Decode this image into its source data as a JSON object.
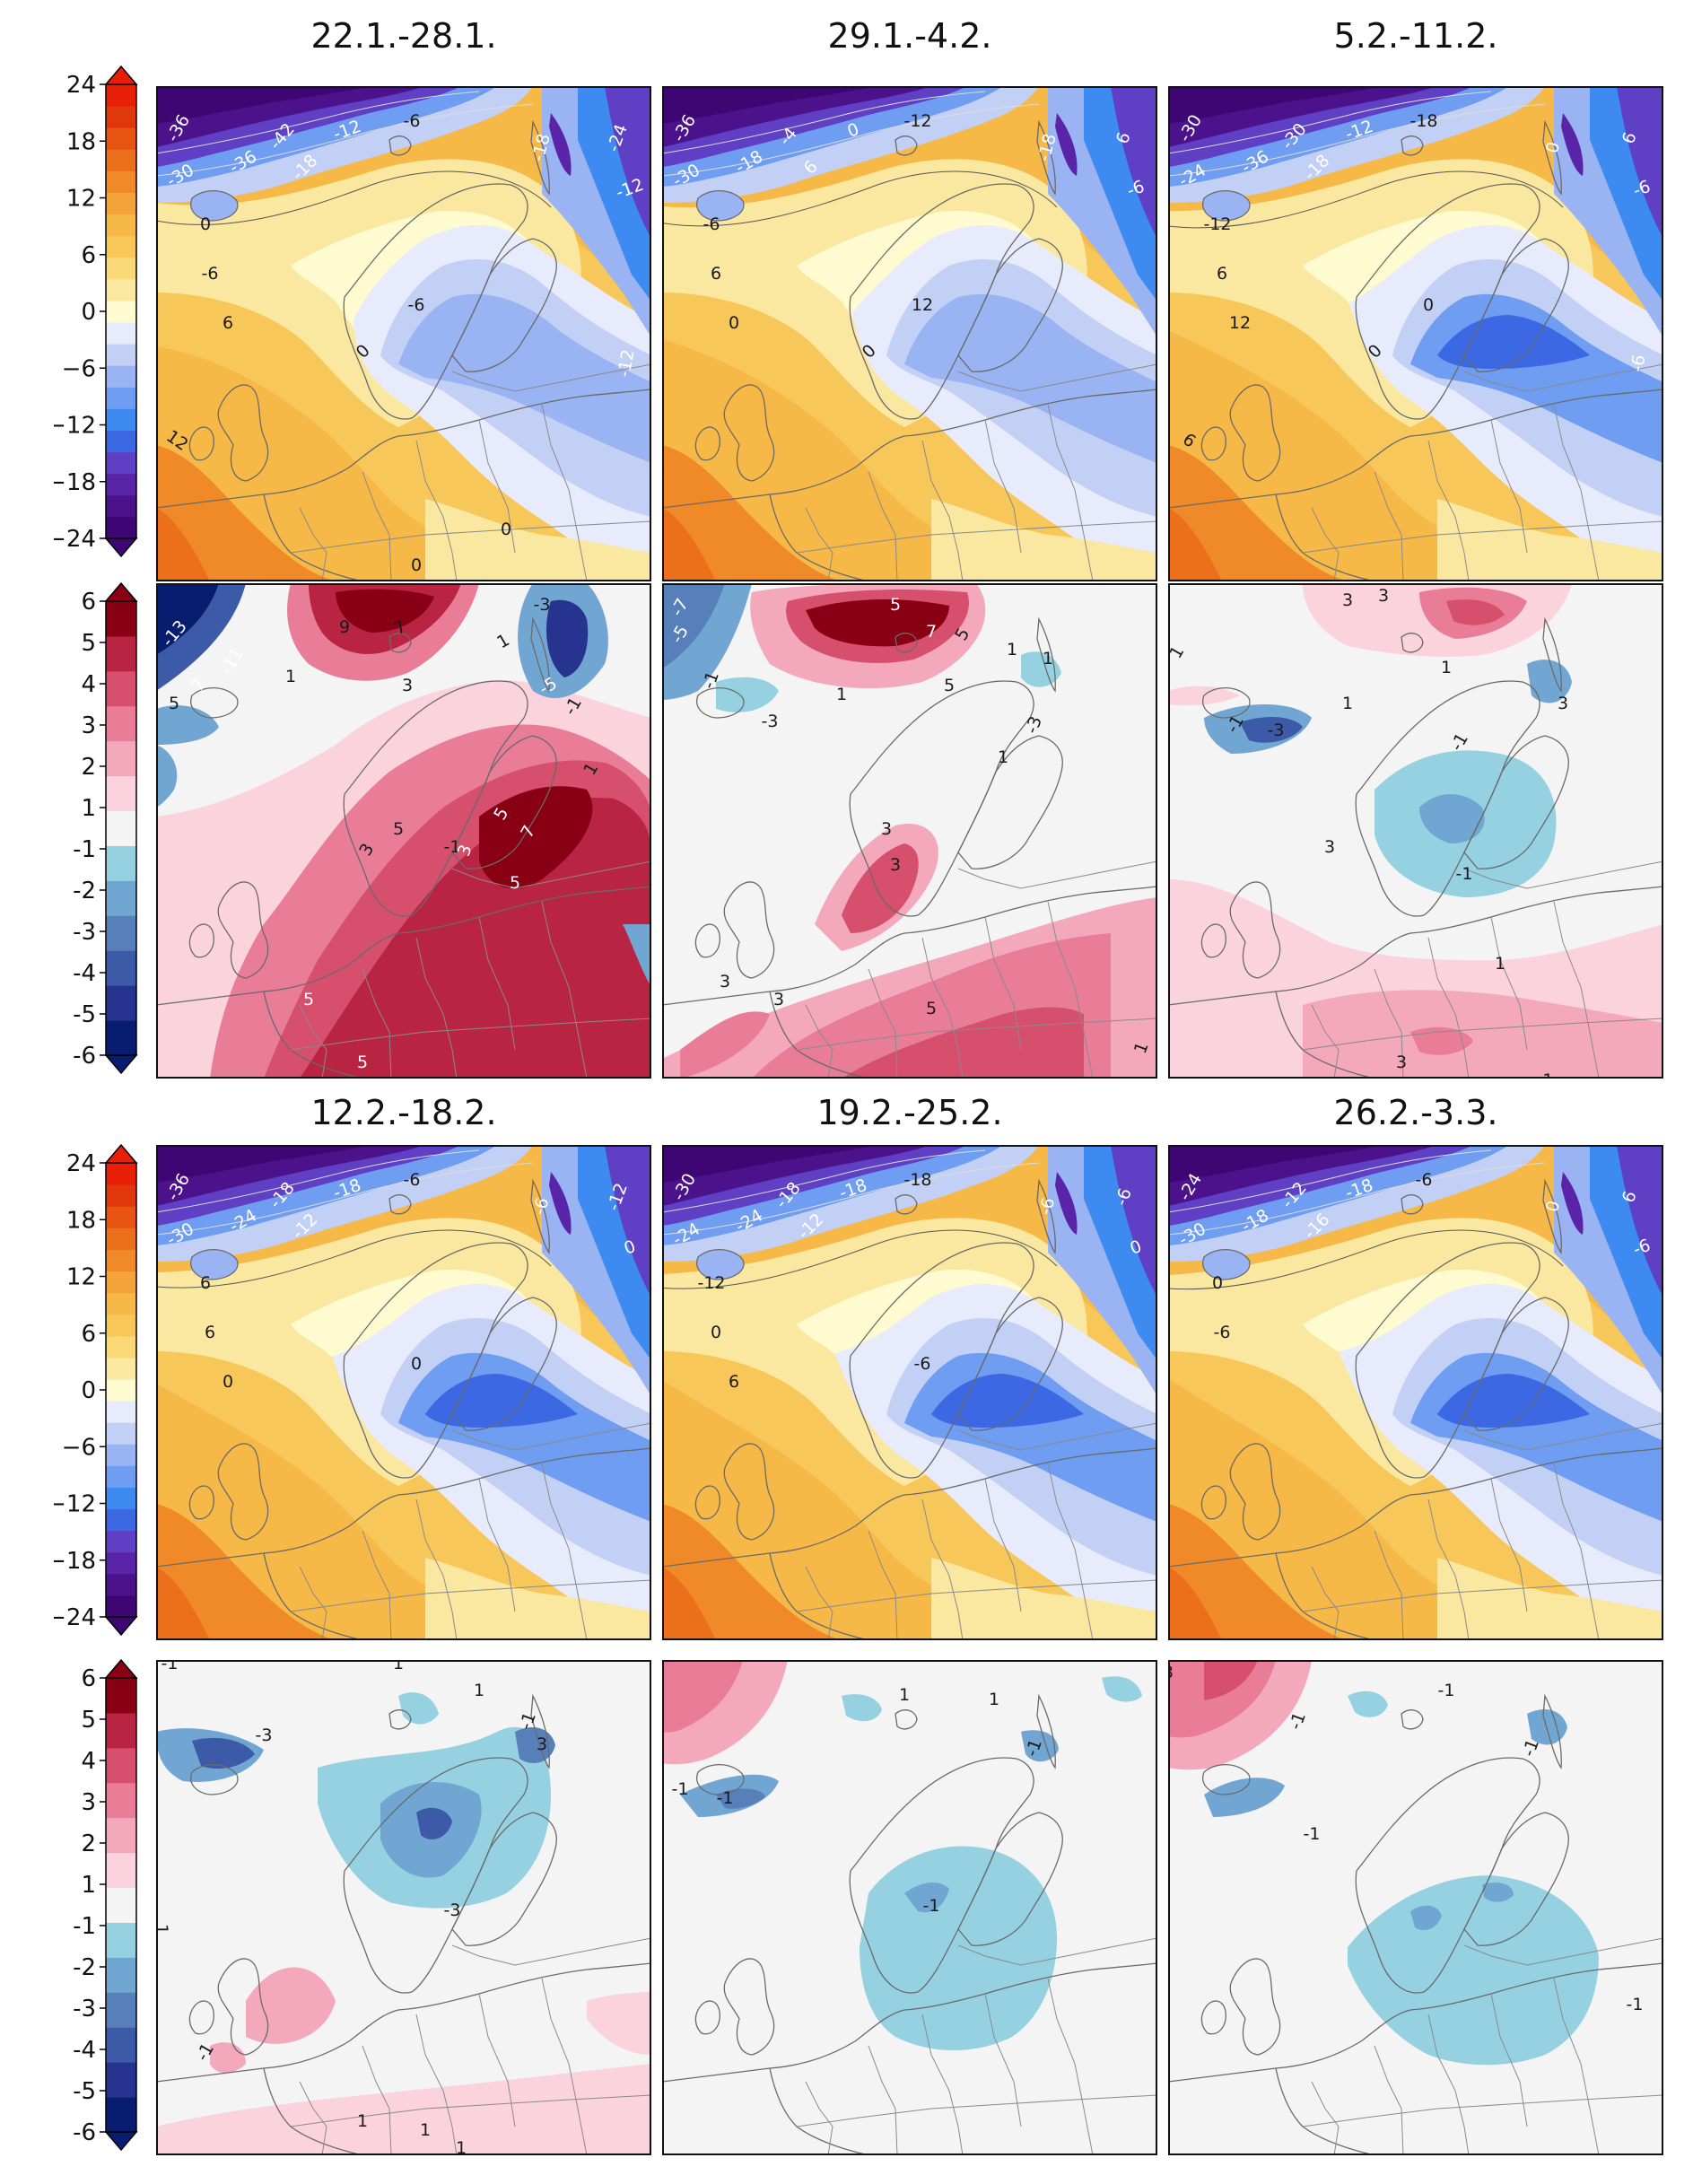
{
  "periods": [
    "22.1.-28.1.",
    "29.1.-4.2.",
    "5.2.-11.2.",
    "12.2.-18.2.",
    "19.2.-25.2.",
    "26.2.-3.3."
  ],
  "temperature_colorbar": {
    "ticks": [
      "24",
      "18",
      "12",
      "6",
      "0",
      "−6",
      "−12",
      "−18",
      "−24"
    ]
  },
  "anomaly_colorbar": {
    "ticks": [
      "6",
      "5",
      "4",
      "3",
      "2",
      "1",
      "-1",
      "-2",
      "-3",
      "-4",
      "-5",
      "-6"
    ]
  },
  "temp_panels": [
    {
      "labels": [
        "-36",
        "-30",
        "-36",
        "-42",
        "-18",
        "-12",
        "-6",
        "-18",
        "-12",
        "-24",
        "0",
        "-6",
        "6",
        "-6",
        "0",
        "12",
        "-12",
        "0",
        "0"
      ]
    },
    {
      "labels": [
        "-36",
        "-30",
        "-18",
        "-4",
        "6",
        "0",
        "-12",
        "-18",
        "-6",
        "6",
        "-6",
        "6",
        "0",
        "12",
        "0"
      ]
    },
    {
      "labels": [
        "-30",
        "-24",
        "-36",
        "-30",
        "-18",
        "-12",
        "-18",
        "0",
        "-6",
        "6",
        "-12",
        "6",
        "12",
        "0",
        "0",
        "6",
        "-6"
      ]
    },
    {
      "labels": [
        "-36",
        "-30",
        "-24",
        "-18",
        "-12",
        "-18",
        "-6",
        "-6",
        "0",
        "-12",
        "6",
        "6",
        "0",
        "0"
      ]
    },
    {
      "labels": [
        "-30",
        "-24",
        "-24",
        "-18",
        "-12",
        "-18",
        "-18",
        "-6",
        "0",
        "-6",
        "-12",
        "0",
        "6",
        "-6"
      ]
    },
    {
      "labels": [
        "-24",
        "-30",
        "-18",
        "-12",
        "-16",
        "-18",
        "-6",
        "0",
        "-6",
        "6",
        "0",
        "-6"
      ]
    }
  ],
  "anom_panels": [
    {
      "labels": [
        "-13",
        "-7",
        "-11",
        "5",
        "9",
        "7",
        "1",
        "3",
        "-3",
        "-5",
        "-1",
        "1",
        "3",
        "5",
        "-1",
        "7",
        "5",
        "3",
        "5",
        "1",
        "5",
        "5"
      ]
    },
    {
      "labels": [
        "-7",
        "-5",
        "-1",
        "-3",
        "5",
        "7",
        "1",
        "1",
        "-3",
        "1",
        "1",
        "5",
        "3",
        "3",
        "5",
        "3",
        "3",
        "5",
        "1"
      ]
    },
    {
      "labels": [
        "1",
        "3",
        "3",
        "1",
        "1",
        "-1",
        "-3",
        "3",
        "-1",
        "1",
        "-1",
        "3",
        "3",
        "-1"
      ]
    },
    {
      "labels": [
        "-1",
        "1",
        "1",
        "-3",
        "3",
        "-1",
        "1",
        "-3",
        "1",
        "-1",
        "1",
        "1"
      ]
    },
    {
      "labels": [
        "-1",
        "-1",
        "1",
        "1",
        "-1",
        "-1"
      ]
    },
    {
      "labels": [
        "3",
        "-1",
        "-1",
        "-1",
        "-1",
        "-1"
      ]
    }
  ],
  "colors": {
    "temp_levels": [
      "#3d0672",
      "#4b128c",
      "#5a24a8",
      "#5f3fc4",
      "#3c68e3",
      "#3d8af0",
      "#6f9df2",
      "#9ab3f2",
      "#c3d0f6",
      "#e7ebfb",
      "#fffbd0",
      "#fbe8a0",
      "#f9d878",
      "#f8c75a",
      "#f6b846",
      "#f4a33a",
      "#f08a28",
      "#ec701c",
      "#e85412",
      "#e0380a",
      "#e81e06"
    ],
    "anom_levels": [
      "#081d6f",
      "#27348f",
      "#3d5aa8",
      "#577fb9",
      "#72a6d2",
      "#96d1e2",
      "#f4f4f4",
      "#fbd3dc",
      "#f4a8bc",
      "#e97c97",
      "#d64f6d",
      "#b82441",
      "#890015"
    ]
  }
}
